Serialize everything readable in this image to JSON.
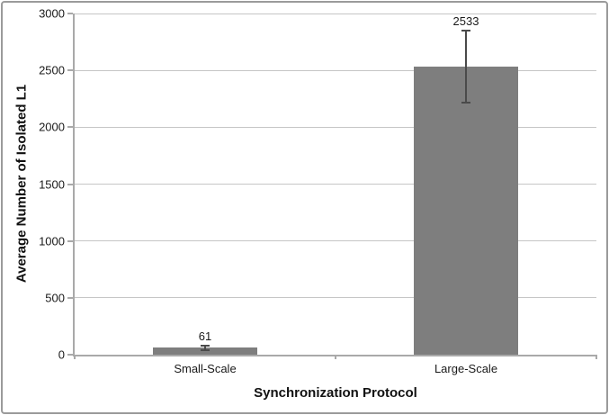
{
  "chart_data": {
    "type": "bar",
    "title": "",
    "categories": [
      "Small-Scale",
      "Large-Scale"
    ],
    "values": [
      61,
      2533
    ],
    "value_labels": [
      "61",
      "2533"
    ],
    "errors": [
      22,
      317
    ],
    "xlabel": "Synchronization Protocol",
    "ylabel": "Average Number of Isolated L1",
    "ylim": [
      0,
      3000
    ],
    "ytick_step": 500,
    "ytick_labels": [
      "0",
      "500",
      "1000",
      "1500",
      "2000",
      "2500",
      "3000"
    ],
    "grid": true,
    "legend": "none",
    "bar_color": "#7e7e7e",
    "gridline_color": "#c6c6c6",
    "axis_color": "#a9a9a9",
    "error_bar_color": "#4a4a4a",
    "text_color": "#1a1a1a"
  }
}
